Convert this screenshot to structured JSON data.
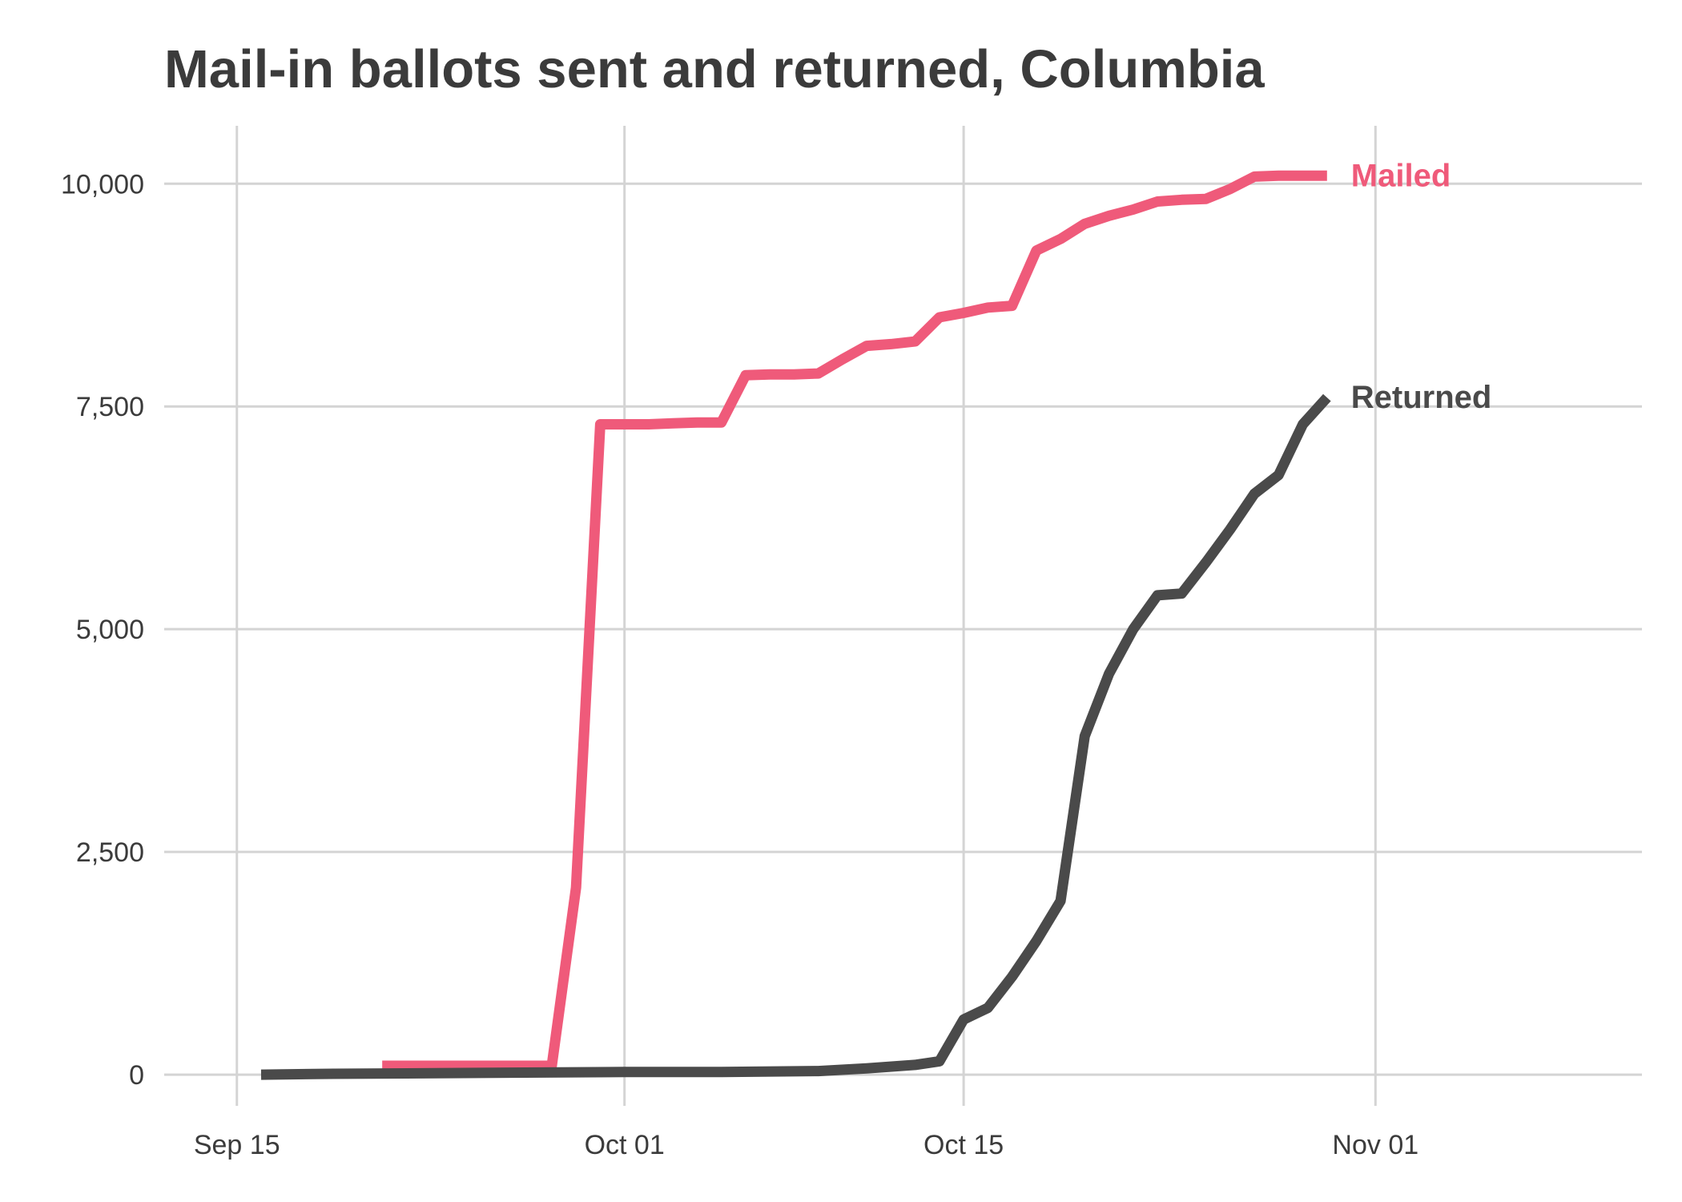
{
  "chart_data": {
    "type": "line",
    "title": "Mail-in ballots sent and returned, Columbia",
    "xlabel": "",
    "ylabel": "",
    "x_ticks": [
      {
        "date": "2020-09-15",
        "label": "Sep 15"
      },
      {
        "date": "2020-10-01",
        "label": "Oct 01"
      },
      {
        "date": "2020-10-15",
        "label": "Oct 15"
      },
      {
        "date": "2020-11-01",
        "label": "Nov 01"
      }
    ],
    "y_ticks": [
      {
        "value": 0,
        "label": "0"
      },
      {
        "value": 2500,
        "label": "2,500"
      },
      {
        "value": 5000,
        "label": "5,000"
      },
      {
        "value": 7500,
        "label": "7,500"
      },
      {
        "value": 10000,
        "label": "10,000"
      }
    ],
    "xlim": [
      "2020-09-12",
      "2020-11-12"
    ],
    "ylim": [
      -350,
      10650
    ],
    "grid": true,
    "legend": "direct labels at line ends",
    "series": [
      {
        "name": "Mailed",
        "color": "#EF5A7A",
        "points": [
          [
            "2020-09-21",
            100
          ],
          [
            "2020-09-27",
            100
          ],
          [
            "2020-09-28",
            100
          ],
          [
            "2020-09-29",
            2100
          ],
          [
            "2020-09-30",
            7300
          ],
          [
            "2020-10-01",
            7300
          ],
          [
            "2020-10-02",
            7300
          ],
          [
            "2020-10-03",
            7310
          ],
          [
            "2020-10-04",
            7320
          ],
          [
            "2020-10-05",
            7320
          ],
          [
            "2020-10-06",
            7850
          ],
          [
            "2020-10-07",
            7860
          ],
          [
            "2020-10-08",
            7860
          ],
          [
            "2020-10-09",
            7870
          ],
          [
            "2020-10-10",
            8030
          ],
          [
            "2020-10-11",
            8180
          ],
          [
            "2020-10-12",
            8200
          ],
          [
            "2020-10-13",
            8230
          ],
          [
            "2020-10-14",
            8500
          ],
          [
            "2020-10-15",
            8550
          ],
          [
            "2020-10-16",
            8610
          ],
          [
            "2020-10-17",
            8630
          ],
          [
            "2020-10-18",
            9250
          ],
          [
            "2020-10-19",
            9380
          ],
          [
            "2020-10-20",
            9550
          ],
          [
            "2020-10-21",
            9640
          ],
          [
            "2020-10-22",
            9710
          ],
          [
            "2020-10-23",
            9800
          ],
          [
            "2020-10-24",
            9820
          ],
          [
            "2020-10-25",
            9830
          ],
          [
            "2020-10-26",
            9940
          ],
          [
            "2020-10-27",
            10080
          ],
          [
            "2020-10-28",
            10090
          ],
          [
            "2020-10-29",
            10090
          ],
          [
            "2020-10-30",
            10090
          ]
        ]
      },
      {
        "name": "Returned",
        "color": "#4A4A4A",
        "points": [
          [
            "2020-09-16",
            0
          ],
          [
            "2020-09-19",
            10
          ],
          [
            "2020-09-25",
            20
          ],
          [
            "2020-10-01",
            30
          ],
          [
            "2020-10-05",
            30
          ],
          [
            "2020-10-09",
            40
          ],
          [
            "2020-10-11",
            70
          ],
          [
            "2020-10-13",
            110
          ],
          [
            "2020-10-14",
            150
          ],
          [
            "2020-10-15",
            620
          ],
          [
            "2020-10-16",
            750
          ],
          [
            "2020-10-17",
            1100
          ],
          [
            "2020-10-18",
            1500
          ],
          [
            "2020-10-19",
            1950
          ],
          [
            "2020-10-20",
            3800
          ],
          [
            "2020-10-21",
            4500
          ],
          [
            "2020-10-22",
            5000
          ],
          [
            "2020-10-23",
            5380
          ],
          [
            "2020-10-24",
            5400
          ],
          [
            "2020-10-25",
            5750
          ],
          [
            "2020-10-26",
            6120
          ],
          [
            "2020-10-27",
            6520
          ],
          [
            "2020-10-28",
            6730
          ],
          [
            "2020-10-29",
            7300
          ],
          [
            "2020-10-30",
            7600
          ]
        ]
      }
    ]
  }
}
